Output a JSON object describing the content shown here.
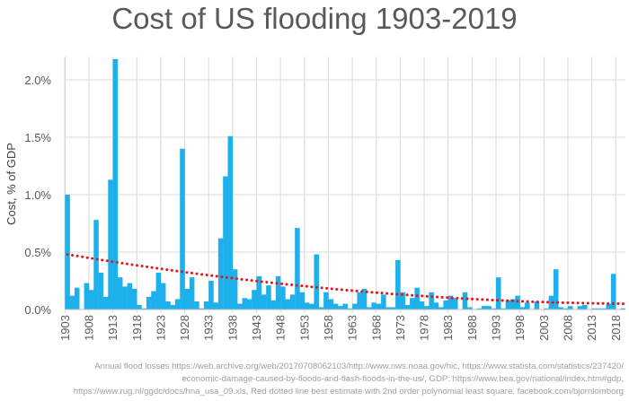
{
  "chart_data": {
    "type": "bar",
    "title": "Cost of US flooding 1903-2019",
    "xlabel": "",
    "ylabel": "Cost, % of GDP",
    "x_start": 1903,
    "x_end": 2019,
    "xtick_labels": [
      "1903",
      "1908",
      "1913",
      "1918",
      "1923",
      "1928",
      "1933",
      "1938",
      "1943",
      "1948",
      "1953",
      "1958",
      "1963",
      "1968",
      "1973",
      "1978",
      "1983",
      "1988",
      "1993",
      "1998",
      "2003",
      "2008",
      "2013",
      "2018"
    ],
    "ytick_labels": [
      "0.0%",
      "0.5%",
      "1.0%",
      "1.5%",
      "2.0%"
    ],
    "ylim": [
      0,
      2.2
    ],
    "grid": true,
    "bar_color": "#1eb0ea",
    "trend_color": "#e8141c",
    "values": [
      1.0,
      0.12,
      0.19,
      0.0,
      0.23,
      0.17,
      0.78,
      0.32,
      0.11,
      1.13,
      2.18,
      0.28,
      0.2,
      0.23,
      0.18,
      0.04,
      0.01,
      0.11,
      0.16,
      0.32,
      0.23,
      0.07,
      0.04,
      0.09,
      1.4,
      0.18,
      0.28,
      0.07,
      0.01,
      0.07,
      0.25,
      0.06,
      0.62,
      1.16,
      1.51,
      0.35,
      0.05,
      0.1,
      0.09,
      0.17,
      0.29,
      0.13,
      0.21,
      0.08,
      0.29,
      0.2,
      0.09,
      0.13,
      0.71,
      0.15,
      0.06,
      0.05,
      0.48,
      0.02,
      0.15,
      0.09,
      0.05,
      0.03,
      0.05,
      0.01,
      0.05,
      0.15,
      0.18,
      0.02,
      0.06,
      0.05,
      0.13,
      0.02,
      0.02,
      0.43,
      0.15,
      0.04,
      0.1,
      0.19,
      0.07,
      0.03,
      0.15,
      0.06,
      0.02,
      0.08,
      0.12,
      0.1,
      0.0,
      0.15,
      0.02,
      0.0,
      0.01,
      0.03,
      0.03,
      0.01,
      0.28,
      0.01,
      0.08,
      0.09,
      0.12,
      0.02,
      0.06,
      0.0,
      0.07,
      0.0,
      0.01,
      0.12,
      0.35,
      0.02,
      0.01,
      0.03,
      0.0,
      0.03,
      0.04,
      0.0,
      0.01,
      0.01,
      0.01,
      0.05,
      0.31,
      0.0,
      0.01
    ],
    "trendline": {
      "style": "red dotted, 2nd order polynomial",
      "points": [
        [
          1903,
          0.48
        ],
        [
          1938,
          0.27
        ],
        [
          2019,
          0.05
        ]
      ]
    }
  },
  "footnote": [
    "Annual flood losses https://web.archive.org/web/20170708062103/http://www.nws.noaa.gov/hic, https://www.statista.com/statistics/237420/",
    "economic-damage-caused-by-floods-and-flash-floods-in-the-us/, GDP: https://www.bea.gov/national/index.htm#gdp,",
    "https://www.rug.nl/ggdc/docs/hna_usa_09.xls, Red dotted line best estimate with 2nd order polynomial least square. facebook.com/bjornlomborg"
  ]
}
